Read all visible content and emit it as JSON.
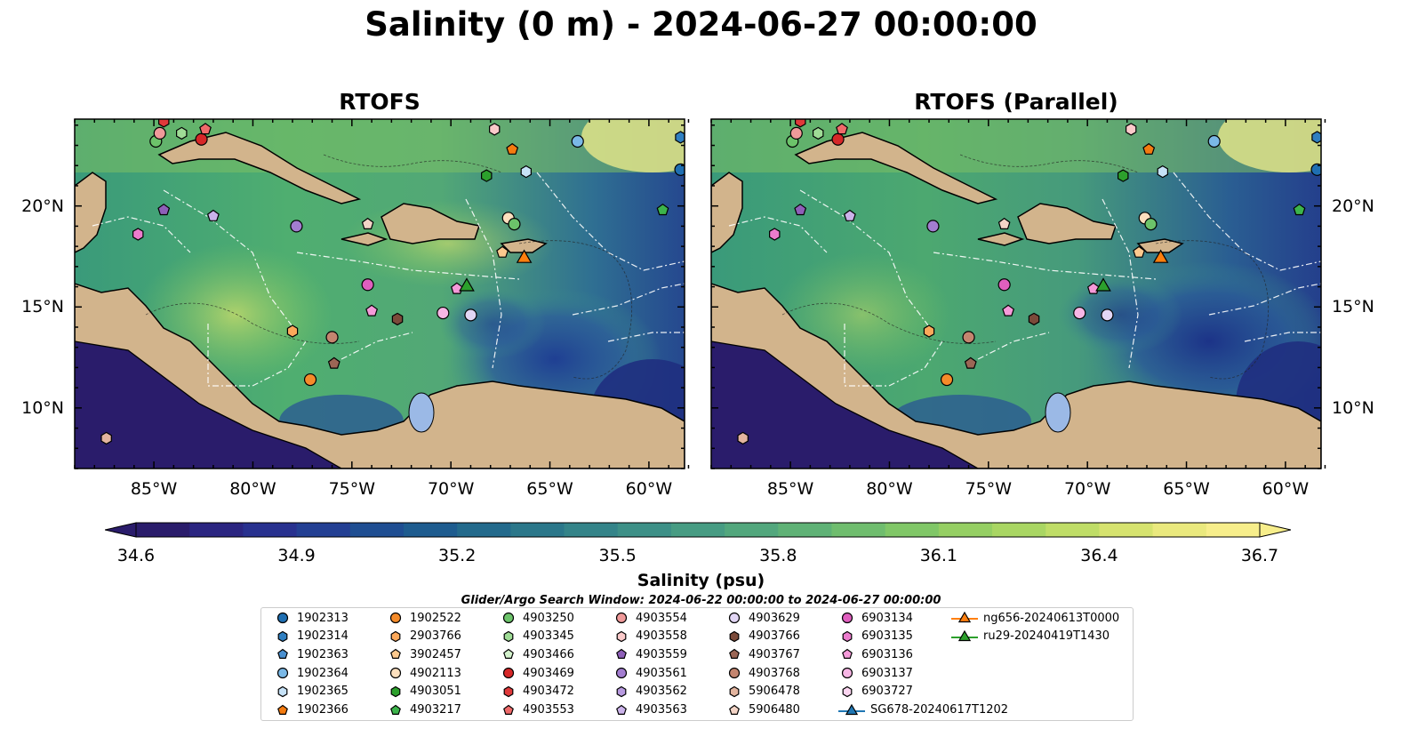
{
  "title": "Salinity (0 m) - 2024-06-27 00:00:00",
  "panels": [
    {
      "title": "RTOFS"
    },
    {
      "title": "RTOFS (Parallel)"
    }
  ],
  "lat_labels": [
    "20°N",
    "15°N",
    "10°N"
  ],
  "lon_labels": [
    "85°W",
    "80°W",
    "75°W",
    "70°W",
    "65°W",
    "60°W"
  ],
  "map_extent": {
    "lon": [
      -89,
      -58.2
    ],
    "lat": [
      7.0,
      24.3
    ]
  },
  "colorbar": {
    "label": "Salinity (psu)",
    "ticks": [
      "34.6",
      "34.9",
      "35.2",
      "35.5",
      "35.8",
      "36.1",
      "36.4",
      "36.7"
    ],
    "range": [
      34.6,
      36.7
    ],
    "colormap": "haline",
    "extend": "both"
  },
  "search_window": "Glider/Argo Search Window: 2024-06-22 00:00:00 to 2024-06-27 00:00:00",
  "legend": [
    {
      "label": "1902313",
      "marker": "circle",
      "color": "#1f6fb2"
    },
    {
      "label": "1902314",
      "marker": "hexagon",
      "color": "#2f7fc1"
    },
    {
      "label": "1902363",
      "marker": "pentagon",
      "color": "#4a90d0"
    },
    {
      "label": "1902364",
      "marker": "circle",
      "color": "#7ab8e6"
    },
    {
      "label": "1902365",
      "marker": "hexagon",
      "color": "#c6e2f7"
    },
    {
      "label": "1902366",
      "marker": "pentagon",
      "color": "#f47b10"
    },
    {
      "label": "1902522",
      "marker": "circle",
      "color": "#f58b2a"
    },
    {
      "label": "2903766",
      "marker": "hexagon",
      "color": "#fca85a"
    },
    {
      "label": "3902457",
      "marker": "pentagon",
      "color": "#fcc98e"
    },
    {
      "label": "4902113",
      "marker": "circle",
      "color": "#fde0be"
    },
    {
      "label": "4903051",
      "marker": "hexagon",
      "color": "#2ca02c"
    },
    {
      "label": "4903217",
      "marker": "pentagon",
      "color": "#3cb44b"
    },
    {
      "label": "4903250",
      "marker": "circle",
      "color": "#6cc36a"
    },
    {
      "label": "4903345",
      "marker": "hexagon",
      "color": "#9fdc96"
    },
    {
      "label": "4903466",
      "marker": "pentagon",
      "color": "#d3f2cc"
    },
    {
      "label": "4903469",
      "marker": "circle",
      "color": "#d62728"
    },
    {
      "label": "4903472",
      "marker": "hexagon",
      "color": "#e0393a"
    },
    {
      "label": "4903553",
      "marker": "pentagon",
      "color": "#ef6a6a"
    },
    {
      "label": "4903554",
      "marker": "circle",
      "color": "#f09a9a"
    },
    {
      "label": "4903558",
      "marker": "hexagon",
      "color": "#fbcaca"
    },
    {
      "label": "4903559",
      "marker": "pentagon",
      "color": "#8e5fb8"
    },
    {
      "label": "4903561",
      "marker": "circle",
      "color": "#a37dd0"
    },
    {
      "label": "4903562",
      "marker": "hexagon",
      "color": "#b89ae0"
    },
    {
      "label": "4903563",
      "marker": "pentagon",
      "color": "#cbb3ea"
    },
    {
      "label": "4903629",
      "marker": "circle",
      "color": "#e2d6f5"
    },
    {
      "label": "4903766",
      "marker": "hexagon",
      "color": "#7b4a3a"
    },
    {
      "label": "4903767",
      "marker": "pentagon",
      "color": "#9b6655"
    },
    {
      "label": "4903768",
      "marker": "circle",
      "color": "#c4856f"
    },
    {
      "label": "5906478",
      "marker": "hexagon",
      "color": "#e3b59f"
    },
    {
      "label": "5906480",
      "marker": "pentagon",
      "color": "#f3d4c6"
    },
    {
      "label": "6903134",
      "marker": "circle",
      "color": "#e05fbf"
    },
    {
      "label": "6903135",
      "marker": "hexagon",
      "color": "#ec7ccd"
    },
    {
      "label": "6903136",
      "marker": "pentagon",
      "color": "#f59ad9"
    },
    {
      "label": "6903137",
      "marker": "circle",
      "color": "#f7b6e5"
    },
    {
      "label": "6903727",
      "marker": "hexagon",
      "color": "#fbd5f0"
    },
    {
      "label": "SG678-20240617T1202",
      "marker": "triangle-line",
      "color": "#1f77b4"
    },
    {
      "label": "ng656-20240613T0000",
      "marker": "triangle-line",
      "color": "#ff7f0e"
    },
    {
      "label": "ru29-20240419T1430",
      "marker": "triangle-line",
      "color": "#2ca02c"
    }
  ],
  "floats": [
    {
      "id": "1902313",
      "lon": -58.4,
      "lat": 21.8
    },
    {
      "id": "1902314",
      "lon": -58.4,
      "lat": 23.4
    },
    {
      "id": "1902364",
      "lon": -63.6,
      "lat": 23.2
    },
    {
      "id": "1902365",
      "lon": -66.2,
      "lat": 21.7
    },
    {
      "id": "1902366",
      "lon": -66.9,
      "lat": 22.8
    },
    {
      "id": "1902522",
      "lon": -77.1,
      "lat": 11.4
    },
    {
      "id": "2903766",
      "lon": -78.0,
      "lat": 13.8
    },
    {
      "id": "3902457",
      "lon": -67.4,
      "lat": 17.7
    },
    {
      "id": "4902113",
      "lon": -67.1,
      "lat": 19.4
    },
    {
      "id": "4903051",
      "lon": -68.2,
      "lat": 21.5
    },
    {
      "id": "4903217",
      "lon": -59.3,
      "lat": 19.8
    },
    {
      "id": "4903250",
      "lon": -84.9,
      "lat": 23.2
    },
    {
      "id": "4903250",
      "lon": -66.8,
      "lat": 19.1
    },
    {
      "id": "4903345",
      "lon": -83.6,
      "lat": 23.6
    },
    {
      "id": "4903469",
      "lon": -82.6,
      "lat": 23.3
    },
    {
      "id": "4903472",
      "lon": -84.5,
      "lat": 24.2
    },
    {
      "id": "4903553",
      "lon": -82.4,
      "lat": 23.8
    },
    {
      "id": "4903554",
      "lon": -84.7,
      "lat": 23.6
    },
    {
      "id": "4903558",
      "lon": -67.8,
      "lat": 23.8
    },
    {
      "id": "4903559",
      "lon": -84.5,
      "lat": 19.8
    },
    {
      "id": "4903561",
      "lon": -77.8,
      "lat": 19.0
    },
    {
      "id": "4903563",
      "lon": -82.0,
      "lat": 19.5
    },
    {
      "id": "4903629",
      "lon": -69.0,
      "lat": 14.6
    },
    {
      "id": "4903766",
      "lon": -72.7,
      "lat": 14.4
    },
    {
      "id": "4903767",
      "lon": -75.9,
      "lat": 12.2
    },
    {
      "id": "4903768",
      "lon": -76.0,
      "lat": 13.5
    },
    {
      "id": "5906478",
      "lon": -87.4,
      "lat": 8.5
    },
    {
      "id": "5906480",
      "lon": -74.2,
      "lat": 19.1
    },
    {
      "id": "6903134",
      "lon": -74.2,
      "lat": 16.1
    },
    {
      "id": "6903135",
      "lon": -85.8,
      "lat": 18.6
    },
    {
      "id": "6903136",
      "lon": -69.7,
      "lat": 15.9
    },
    {
      "id": "6903136",
      "lon": -74.0,
      "lat": 14.8
    },
    {
      "id": "6903137",
      "lon": -70.4,
      "lat": 14.7
    }
  ],
  "gliders": [
    {
      "id": "ng656-20240613T0000",
      "lon": -66.3,
      "lat": 17.4
    },
    {
      "id": "ru29-20240419T1430",
      "lon": -69.2,
      "lat": 16.0
    }
  ]
}
